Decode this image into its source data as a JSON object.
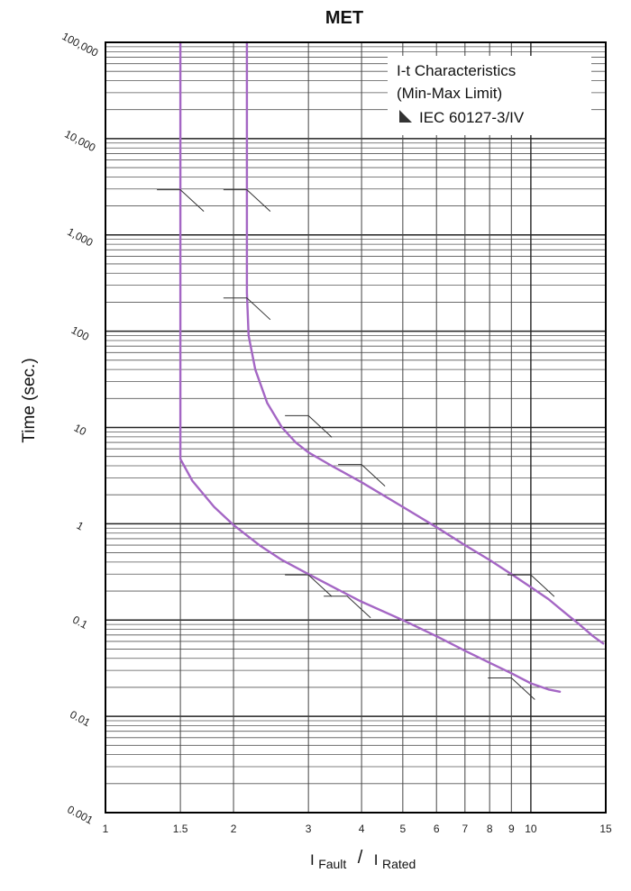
{
  "chart_data": {
    "type": "line",
    "title": "MET",
    "ylabel": "Time (sec.)",
    "xlabel": {
      "numerator": "I",
      "numerator_sub": "Fault",
      "slash": "/",
      "denominator": "I",
      "denominator_sub": "Rated"
    },
    "x_scale": "log",
    "y_scale": "log",
    "xlim": [
      1,
      15
    ],
    "ylim": [
      0.001,
      100000
    ],
    "x_ticks": [
      1,
      1.5,
      2,
      3,
      4,
      5,
      6,
      7,
      8,
      9,
      10,
      15
    ],
    "x_tick_labels": [
      "1",
      "1.5",
      "2",
      "3",
      "4",
      "5",
      "6",
      "7",
      "8",
      "9",
      "10",
      "15"
    ],
    "y_ticks": [
      100000,
      10000,
      1000,
      100,
      10,
      1,
      0.1,
      0.01,
      0.001
    ],
    "y_tick_labels": [
      "100,000",
      "10,000",
      "1,000",
      "100",
      "10",
      "1",
      "0.1",
      "0.01",
      "0.001"
    ],
    "grid": true,
    "legend": {
      "position": "top-right",
      "lines": [
        "I-t Characteristics",
        "(Min-Max Limit)",
        "IEC 60127-3/IV"
      ]
    },
    "curve_color": "#a466c4",
    "series": [
      {
        "x": [
          1.5,
          1.5,
          1.6,
          1.8,
          2.0,
          2.3,
          2.6,
          3.0,
          3.5,
          4.0,
          5.0,
          6.0,
          7.0,
          8.0,
          9.0,
          10.0,
          11.0,
          11.7
        ],
        "y": [
          100000,
          4.7,
          2.8,
          1.5,
          0.97,
          0.6,
          0.42,
          0.3,
          0.21,
          0.155,
          0.1,
          0.068,
          0.048,
          0.036,
          0.028,
          0.022,
          0.019,
          0.018
        ]
      },
      {
        "x": [
          2.15,
          2.15,
          2.17,
          2.25,
          2.4,
          2.6,
          2.8,
          3.0,
          3.4,
          4.0,
          5.0,
          6.0,
          7.0,
          8.0,
          9.0,
          10.0,
          11.0,
          12.0,
          13.0,
          14.0,
          14.8
        ],
        "y": [
          100000,
          250,
          90,
          40,
          18,
          10,
          7,
          5.5,
          4.0,
          2.7,
          1.5,
          0.92,
          0.6,
          0.42,
          0.3,
          0.22,
          0.165,
          0.12,
          0.09,
          0.068,
          0.057
        ]
      }
    ]
  }
}
